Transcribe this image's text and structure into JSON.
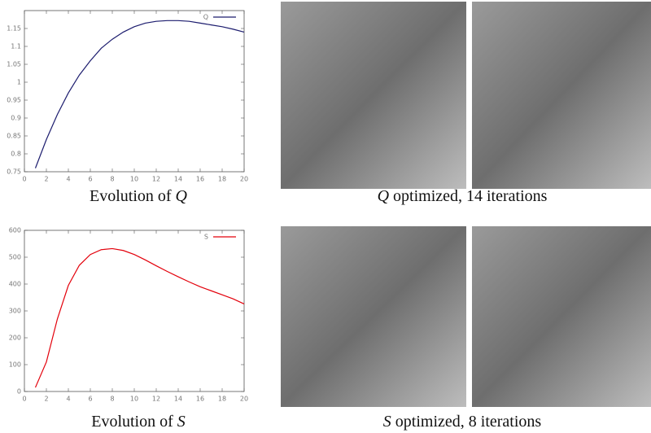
{
  "chart_data": [
    {
      "type": "line",
      "x": [
        1,
        2,
        3,
        4,
        5,
        6,
        7,
        8,
        9,
        10,
        11,
        12,
        13,
        14,
        15,
        16,
        17,
        18,
        19,
        20
      ],
      "series": [
        {
          "name": "Q",
          "color": "#1c1c6e",
          "values": [
            0.76,
            0.84,
            0.91,
            0.97,
            1.02,
            1.06,
            1.095,
            1.12,
            1.14,
            1.155,
            1.165,
            1.17,
            1.172,
            1.172,
            1.17,
            1.165,
            1.16,
            1.155,
            1.148,
            1.14
          ]
        }
      ],
      "xlim": [
        0,
        20
      ],
      "xticks": [
        0,
        2,
        4,
        6,
        8,
        10,
        12,
        14,
        16,
        18,
        20
      ],
      "ylim": [
        0.75,
        1.2
      ],
      "yticks": [
        0.75,
        0.8,
        0.85,
        0.9,
        0.95,
        1,
        1.05,
        1.1,
        1.15
      ],
      "legend": "top-right"
    },
    {
      "type": "line",
      "x": [
        1,
        2,
        3,
        4,
        5,
        6,
        7,
        8,
        9,
        10,
        11,
        12,
        13,
        14,
        15,
        16,
        17,
        18,
        19,
        20
      ],
      "series": [
        {
          "name": "S",
          "color": "#e3000b",
          "values": [
            15,
            110,
            270,
            395,
            470,
            510,
            528,
            532,
            525,
            510,
            490,
            468,
            447,
            427,
            408,
            390,
            375,
            360,
            345,
            326
          ]
        }
      ],
      "xlim": [
        0,
        20
      ],
      "xticks": [
        0,
        2,
        4,
        6,
        8,
        10,
        12,
        14,
        16,
        18,
        20
      ],
      "ylim": [
        0,
        600
      ],
      "yticks": [
        0,
        100,
        200,
        300,
        400,
        500,
        600
      ],
      "legend": "top-right"
    }
  ],
  "captions": [
    {
      "text": "Evolution of ",
      "symbol": "Q"
    },
    {
      "symbol": "Q",
      "text": " optimized, 14 iterations"
    },
    {
      "text": "Evolution of ",
      "symbol": "S"
    },
    {
      "symbol": "S",
      "text": " optimized, 8 iterations"
    }
  ]
}
